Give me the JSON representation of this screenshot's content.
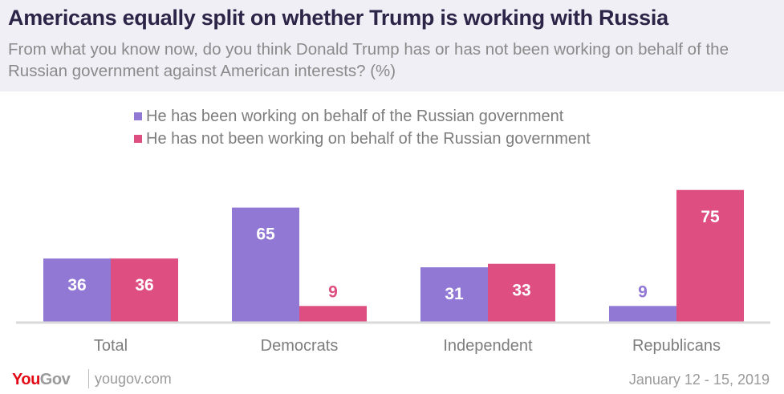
{
  "header": {
    "title": "Americans equally split on whether Trump is working with Russia",
    "subtitle": "From what you know now, do you think Donald Trump has or has not been working on behalf of the Russian government against American interests? (%)"
  },
  "colors": {
    "series1": "#9178d5",
    "series2": "#de4e80",
    "axis": "#d9d9d9",
    "logo_red": "#e30b17"
  },
  "chart_data": {
    "type": "bar",
    "title": "Americans equally split on whether Trump is working with Russia",
    "xlabel": "",
    "ylabel": "",
    "ylim": [
      0,
      80
    ],
    "grid": false,
    "legend_position": "top",
    "categories": [
      "Total",
      "Democrats",
      "Independent",
      "Republicans"
    ],
    "series": [
      {
        "name": "He has been working on behalf of the Russian government",
        "values": [
          36,
          65,
          31,
          9
        ]
      },
      {
        "name": "He has not been working on behalf of the Russian government",
        "values": [
          36,
          9,
          33,
          75
        ]
      }
    ]
  },
  "footer": {
    "logo_you": "You",
    "logo_gov": "Gov",
    "site": "yougov.com",
    "date": "January 12 - 15, 2019"
  }
}
